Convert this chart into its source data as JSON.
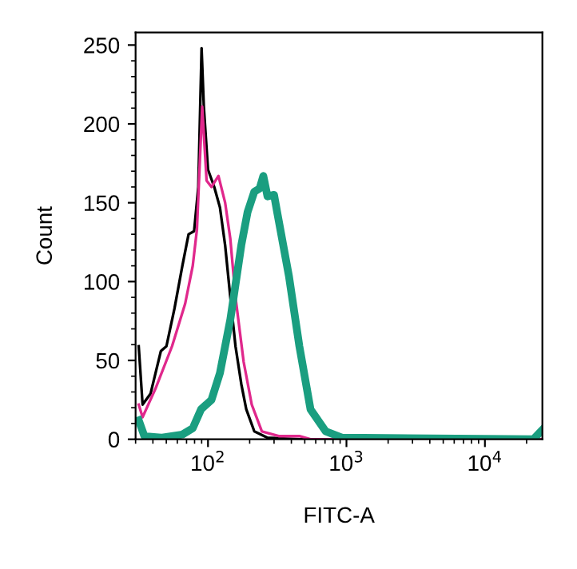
{
  "chart_data": {
    "type": "line",
    "xlabel": "FITC-A",
    "ylabel": "Count",
    "log": "x",
    "xlim": [
      30,
      26000
    ],
    "ylim": [
      0,
      258
    ],
    "xticks": [
      {
        "value": 100,
        "label": "10$^{2}$"
      },
      {
        "value": 1000,
        "label": "10$^{3}$"
      },
      {
        "value": 10000,
        "label": "10$^{4}$"
      }
    ],
    "yticks": [
      0,
      50,
      100,
      150,
      200,
      250
    ],
    "grid": false,
    "marker": "none",
    "line_style": "solid",
    "series": [
      {
        "color": "#000000",
        "x": [
          31.6,
          33.7,
          38.5,
          45.7,
          50.1,
          57.3,
          65.3,
          72.4,
          79.4,
          85.1,
          89.9,
          93.3,
          100,
          111,
          122,
          133,
          145,
          158,
          174,
          189,
          216,
          269,
          457,
          26000
        ],
        "values": [
          59,
          22,
          29,
          56,
          59,
          83,
          110,
          130,
          132,
          160,
          248,
          211,
          171,
          160,
          147,
          123,
          90,
          59,
          35,
          19,
          5,
          1,
          0,
          0
        ]
      },
      {
        "color": "#e0288c",
        "x": [
          31.6,
          33.7,
          41.7,
          55,
          68.4,
          77.6,
          83.2,
          90.8,
          97.7,
          106,
          119,
          133,
          145,
          158,
          181,
          207,
          245,
          324,
          457,
          550,
          26000
        ],
        "values": [
          22,
          14,
          32,
          59,
          86,
          110,
          133,
          211,
          164,
          160,
          167,
          150,
          127,
          90,
          49,
          22,
          5,
          2,
          2,
          0,
          0
        ]
      },
      {
        "color": "#1a9e80",
        "x": [
          31.6,
          34.7,
          45.7,
          65.3,
          77.6,
          89.1,
          106,
          122,
          145,
          174,
          193,
          216,
          236,
          251,
          269,
          300,
          316,
          385,
          457,
          550,
          708,
          933,
          22400,
          26000
        ],
        "values": [
          12,
          2,
          1,
          3,
          7,
          19,
          25,
          42,
          76,
          123,
          144,
          157,
          159,
          167,
          154,
          155,
          144,
          103,
          59,
          19,
          5,
          1,
          0,
          6
        ]
      }
    ]
  }
}
